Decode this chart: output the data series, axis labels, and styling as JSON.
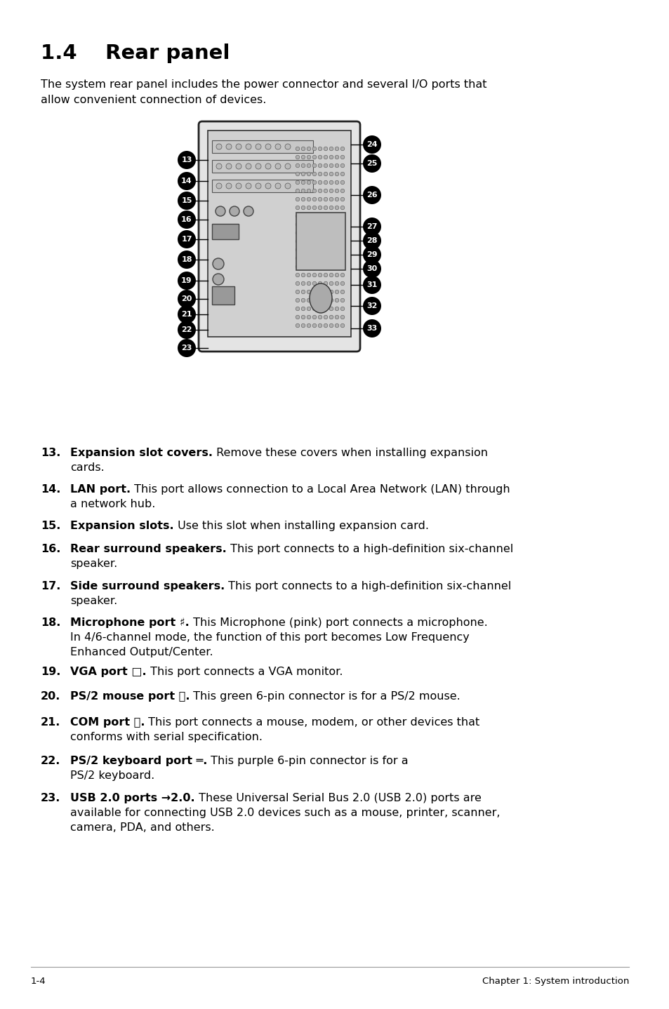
{
  "title": "1.4    Rear panel",
  "intro_line1": "The system rear panel includes the power connector and several I/O ports that",
  "intro_line2": "allow convenient connection of devices.",
  "items": [
    {
      "num": "13.",
      "bold": "Expansion slot covers.",
      "rest": " Remove these covers when installing expansion",
      "lines": [
        "cards."
      ]
    },
    {
      "num": "14.",
      "bold": "LAN port.",
      "rest": " This port allows connection to a Local Area Network (LAN) through",
      "lines": [
        "a network hub."
      ]
    },
    {
      "num": "15.",
      "bold": "Expansion slots.",
      "rest": " Use this slot when installing expansion card.",
      "lines": []
    },
    {
      "num": "16.",
      "bold": "Rear surround speakers.",
      "rest": " This port connects to a high-definition six-channel",
      "lines": [
        "speaker."
      ]
    },
    {
      "num": "17.",
      "bold": "Side surround speakers.",
      "rest": " This port connects to a high-definition six-channel",
      "lines": [
        "speaker."
      ]
    },
    {
      "num": "18.",
      "bold": "Microphone port ♯.",
      "rest": " This Microphone (pink) port connects a microphone.",
      "lines": [
        "In 4/6-channel mode, the function of this port becomes Low Frequency",
        "Enhanced Output/Center."
      ]
    },
    {
      "num": "19.",
      "bold": "VGA port □.",
      "rest": " This port connects a VGA monitor.",
      "lines": []
    },
    {
      "num": "20.",
      "bold": "PS/2 mouse port ⎈.",
      "rest": " This green 6-pin connector is for a PS/2 mouse.",
      "lines": []
    },
    {
      "num": "21.",
      "bold": "COM port ⧧.",
      "rest": " This port connects a mouse, modem, or other devices that",
      "lines": [
        "conforms with serial specification."
      ]
    },
    {
      "num": "22.",
      "bold": "PS/2 keyboard port ═.",
      "rest": " This purple 6-pin connector is for a",
      "lines": [
        "PS/2 keyboard."
      ]
    },
    {
      "num": "23.",
      "bold": "USB 2.0 ports →2.0.",
      "rest": " These Universal Serial Bus 2.0 (USB 2.0) ports are",
      "lines": [
        "available for connecting USB 2.0 devices such as a mouse, printer, scanner,",
        "camera, PDA, and others."
      ]
    }
  ],
  "footer_left": "1-4",
  "footer_right": "Chapter 1: System introduction",
  "bg_color": "#ffffff",
  "text_color": "#000000",
  "title_fontsize": 21,
  "body_fontsize": 11.5
}
